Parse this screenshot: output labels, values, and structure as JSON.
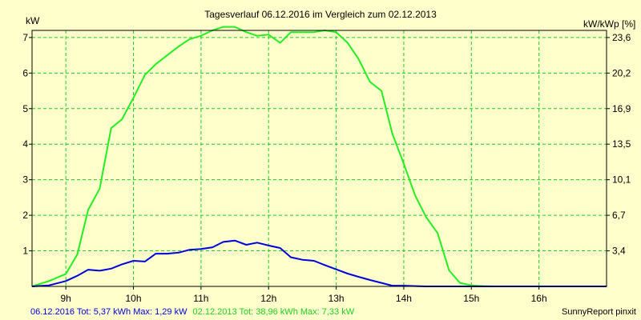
{
  "chart_data": {
    "type": "line",
    "title": "Tagesverlauf 06.12.2016 im Vergleich zum 02.12.2013",
    "ylabel_left": "kW",
    "ylabel_right": "kW/kWp [%]",
    "xlim": [
      8.5,
      17.0
    ],
    "ylim": [
      0,
      7.2
    ],
    "x_ticks": [
      {
        "value": 9,
        "label": "9h"
      },
      {
        "value": 10,
        "label": "10h"
      },
      {
        "value": 11,
        "label": "11h"
      },
      {
        "value": 12,
        "label": "12h"
      },
      {
        "value": 13,
        "label": "13h"
      },
      {
        "value": 14,
        "label": "14h"
      },
      {
        "value": 15,
        "label": "15h"
      },
      {
        "value": 16,
        "label": "16h"
      }
    ],
    "y_ticks_left": [
      {
        "value": 1,
        "label": "1"
      },
      {
        "value": 2,
        "label": "2"
      },
      {
        "value": 3,
        "label": "3"
      },
      {
        "value": 4,
        "label": "4"
      },
      {
        "value": 5,
        "label": "5"
      },
      {
        "value": 6,
        "label": "6"
      },
      {
        "value": 7,
        "label": "7"
      }
    ],
    "y_ticks_right": [
      {
        "value": 1,
        "label": "3,4"
      },
      {
        "value": 2,
        "label": "6,7"
      },
      {
        "value": 3,
        "label": "10,1"
      },
      {
        "value": 4,
        "label": "13,5"
      },
      {
        "value": 5,
        "label": "16,9"
      },
      {
        "value": 6,
        "label": "20,2"
      },
      {
        "value": 7,
        "label": "23,6"
      }
    ],
    "grid": true,
    "series": [
      {
        "name": "02.12.2013",
        "color": "#22ee22",
        "x": [
          8.5,
          8.75,
          9.0,
          9.17,
          9.33,
          9.5,
          9.67,
          9.83,
          10.0,
          10.17,
          10.33,
          10.5,
          10.67,
          10.83,
          11.0,
          11.17,
          11.33,
          11.5,
          11.67,
          11.83,
          12.0,
          12.17,
          12.33,
          12.5,
          12.67,
          12.83,
          13.0,
          13.17,
          13.33,
          13.5,
          13.67,
          13.83,
          14.0,
          14.17,
          14.33,
          14.5,
          14.67,
          14.83,
          15.0,
          15.17,
          15.33,
          15.5,
          15.67,
          15.83,
          16.0,
          16.17,
          16.33,
          16.5,
          16.67,
          16.83,
          17.0
        ],
        "y": [
          0.0,
          0.15,
          0.35,
          0.9,
          2.15,
          2.75,
          4.45,
          4.7,
          5.3,
          5.95,
          6.25,
          6.5,
          6.75,
          6.95,
          7.05,
          7.2,
          7.3,
          7.3,
          7.15,
          7.05,
          7.08,
          6.85,
          7.15,
          7.15,
          7.15,
          7.2,
          7.15,
          6.85,
          6.4,
          5.75,
          5.5,
          4.3,
          3.45,
          2.55,
          1.95,
          1.5,
          0.45,
          0.1,
          0.03,
          0.01,
          0.0,
          0.0,
          0.0,
          0.0,
          0.0,
          0.0,
          0.0,
          0.0,
          0.0,
          0.0,
          0.0
        ]
      },
      {
        "name": "06.12.2016",
        "color": "#0000dd",
        "x": [
          8.5,
          8.75,
          9.0,
          9.17,
          9.33,
          9.5,
          9.67,
          9.83,
          10.0,
          10.17,
          10.33,
          10.5,
          10.67,
          10.83,
          11.0,
          11.17,
          11.33,
          11.5,
          11.67,
          11.83,
          12.0,
          12.17,
          12.33,
          12.5,
          12.67,
          12.83,
          13.0,
          13.17,
          13.33,
          13.5,
          13.67,
          13.83,
          14.0,
          14.17,
          14.33,
          14.5,
          14.67,
          14.83,
          15.0,
          15.17,
          15.33,
          15.5,
          15.67,
          15.83,
          16.0,
          16.17,
          16.33,
          16.5,
          16.67,
          16.83,
          17.0
        ],
        "y": [
          0.0,
          0.03,
          0.15,
          0.3,
          0.47,
          0.44,
          0.5,
          0.62,
          0.72,
          0.7,
          0.92,
          0.92,
          0.95,
          1.03,
          1.05,
          1.1,
          1.25,
          1.29,
          1.17,
          1.23,
          1.15,
          1.08,
          0.82,
          0.75,
          0.72,
          0.6,
          0.48,
          0.36,
          0.27,
          0.18,
          0.1,
          0.02,
          0.02,
          0.01,
          0.0,
          0.0,
          0.0,
          0.0,
          0.0,
          0.0,
          0.0,
          0.0,
          0.0,
          0.0,
          0.0,
          0.0,
          0.0,
          0.0,
          0.0,
          0.0,
          0.0
        ]
      }
    ],
    "footer": {
      "blue_text": "06.12.2016 Tot: 5,37 kWh Max: 1,29 kW",
      "green_text": "02.12.2013 Tot: 38,96 kWh Max: 7,33 kW",
      "credit": "SunnyReport pinxit"
    },
    "colors": {
      "background": "#ffffcc",
      "grid": "#22cc22",
      "axis": "#000000"
    }
  }
}
